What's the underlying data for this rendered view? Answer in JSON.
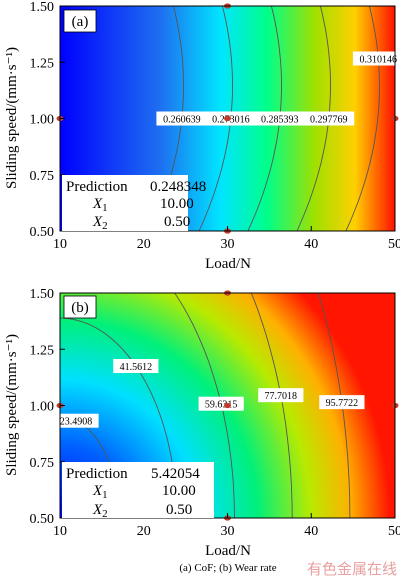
{
  "chart_data": [
    {
      "type": "heatmap",
      "panel_label": "(a)",
      "xlabel": "Load/N",
      "ylabel": "Sliding speed/(mm·s⁻¹)",
      "xlim": [
        10,
        50
      ],
      "ylim": [
        0.5,
        1.5
      ],
      "x_ticks": [
        "10",
        "20",
        "30",
        "40",
        "50"
      ],
      "y_ticks": [
        "0.50",
        "0.75",
        "1.00",
        "1.25",
        "1.50"
      ],
      "color_range": [
        0.2434,
        0.3145
      ],
      "contours": [
        {
          "label": "0.260639",
          "value": 0.260639
        },
        {
          "label": "0.273016",
          "value": 0.273016
        },
        {
          "label": "0.285393",
          "value": 0.285393
        },
        {
          "label": "0.297769",
          "value": 0.297769
        },
        {
          "label": "0.310146",
          "value": 0.310146
        }
      ],
      "prediction": {
        "title": "Prediction",
        "value": "0.248348",
        "rows": [
          {
            "var": "X",
            "sub": "1",
            "value": "10.00"
          },
          {
            "var": "X",
            "sub": "2",
            "value": "0.50"
          }
        ]
      },
      "design_points": [
        [
          30,
          0.5
        ],
        [
          30,
          1.0
        ],
        [
          30,
          1.5
        ],
        [
          10,
          1.0
        ],
        [
          50,
          1.0
        ]
      ]
    },
    {
      "type": "heatmap",
      "panel_label": "(b)",
      "xlabel": "Load/N",
      "ylabel": "Sliding speed/(mm·s⁻¹)",
      "xlim": [
        10,
        50
      ],
      "ylim": [
        0.5,
        1.5
      ],
      "x_ticks": [
        "10",
        "20",
        "30",
        "40",
        "50"
      ],
      "y_ticks": [
        "0.50",
        "0.75",
        "1.00",
        "1.25",
        "1.50"
      ],
      "color_range": [
        5.0,
        112.0
      ],
      "contours": [
        {
          "label": "23.4908",
          "value": 23.4908
        },
        {
          "label": "41.5612",
          "value": 41.5612
        },
        {
          "label": "59.6315",
          "value": 59.6315
        },
        {
          "label": "77.7018",
          "value": 77.7018
        },
        {
          "label": "95.7722",
          "value": 95.7722
        }
      ],
      "prediction": {
        "title": "Prediction",
        "value": "5.42054",
        "rows": [
          {
            "var": "X",
            "sub": "1",
            "value": "10.00"
          },
          {
            "var": "X",
            "sub": "2",
            "value": "0.50"
          }
        ]
      },
      "design_points": [
        [
          30,
          0.5
        ],
        [
          30,
          1.0
        ],
        [
          30,
          1.5
        ],
        [
          10,
          1.0
        ],
        [
          50,
          1.0
        ]
      ]
    }
  ],
  "caption": "(a)  CoF;  (b) Wear rate",
  "watermark": "有色金属在线",
  "colors": {
    "contour": "#555555",
    "point": "#c0392b",
    "watermark": "#e8a0a0"
  }
}
